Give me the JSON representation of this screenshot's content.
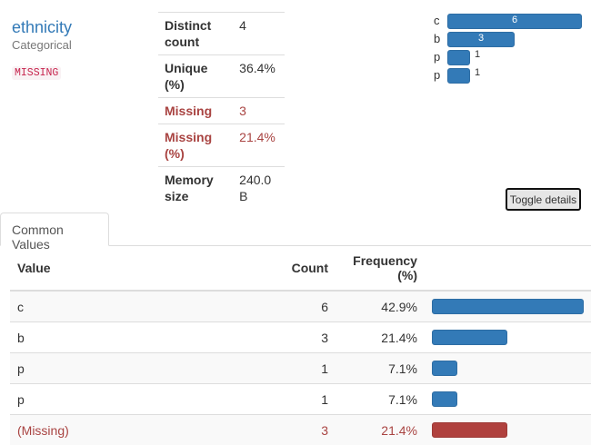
{
  "variable": {
    "name": "ethnicity",
    "type": "Categorical",
    "badge": "MISSING"
  },
  "stats": [
    {
      "key": "Distinct count",
      "value": "4",
      "alert": false
    },
    {
      "key": "Unique (%)",
      "value": "36.4%",
      "alert": false
    },
    {
      "key": "Missing",
      "value": "3",
      "alert": true
    },
    {
      "key": "Missing (%)",
      "value": "21.4%",
      "alert": true
    },
    {
      "key": "Memory size",
      "value": "240.0 B",
      "alert": false
    }
  ],
  "mini_hist": [
    {
      "label": "c",
      "count": "6",
      "inside": true
    },
    {
      "label": "b",
      "count": "3",
      "inside": true
    },
    {
      "label": "p",
      "count": "1",
      "inside": false
    },
    {
      "label": "p",
      "count": "1",
      "inside": false
    }
  ],
  "toggle_label": "Toggle details",
  "tab_label": "Common Values",
  "table": {
    "headers": {
      "value": "Value",
      "count": "Count",
      "frequency": "Frequency (%)"
    },
    "rows": [
      {
        "value": "c",
        "count": "6",
        "freq": "42.9%",
        "share": 0.429,
        "missing": false
      },
      {
        "value": "b",
        "count": "3",
        "freq": "21.4%",
        "share": 0.214,
        "missing": false
      },
      {
        "value": "p",
        "count": "1",
        "freq": "7.1%",
        "share": 0.071,
        "missing": false
      },
      {
        "value": "p",
        "count": "1",
        "freq": "7.1%",
        "share": 0.071,
        "missing": false
      },
      {
        "value": "(Missing)",
        "count": "3",
        "freq": "21.4%",
        "share": 0.214,
        "missing": true
      }
    ]
  },
  "colors": {
    "accent": "#337ab7",
    "missing_text": "#a94442",
    "missing_bar": "#b0413e"
  }
}
